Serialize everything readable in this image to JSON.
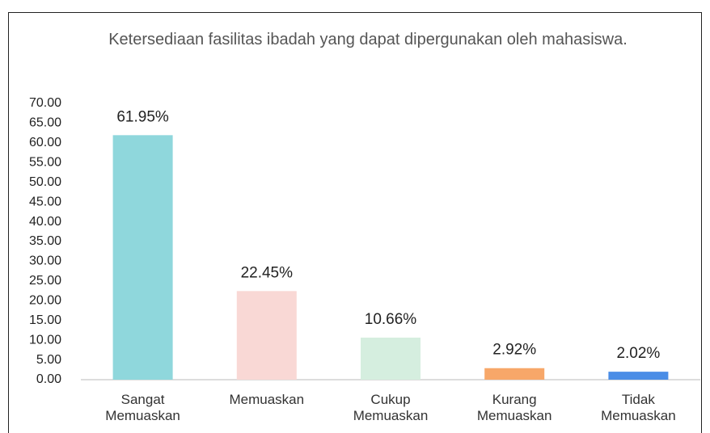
{
  "chart_data": {
    "type": "bar",
    "title": "Ketersediaan fasilitas ibadah yang dapat dipergunakan oleh mahasiswa.",
    "categories": [
      "Sangat Memuaskan",
      "Memuaskan",
      "Cukup Memuaskan",
      "Kurang Memuaskan",
      "Tidak Memuaskan"
    ],
    "values": [
      61.95,
      22.45,
      10.66,
      2.92,
      2.02
    ],
    "value_labels": [
      "61.95%",
      "22.45%",
      "10.66%",
      "2.92%",
      "2.02%"
    ],
    "colors": [
      "#8fd7dc",
      "#f9d8d5",
      "#d5eedf",
      "#f7a769",
      "#4a8de6"
    ],
    "ylim": [
      0,
      70
    ],
    "yticks": [
      {
        "value": 0,
        "label": "0.00"
      },
      {
        "value": 5,
        "label": "5.00"
      },
      {
        "value": 10,
        "label": "10.00"
      },
      {
        "value": 15,
        "label": "15.00"
      },
      {
        "value": 20,
        "label": "20.00"
      },
      {
        "value": 25,
        "label": "25.00"
      },
      {
        "value": 30,
        "label": "30.00"
      },
      {
        "value": 35,
        "label": "35.00"
      },
      {
        "value": 40,
        "label": "40.00"
      },
      {
        "value": 45,
        "label": "45.00"
      },
      {
        "value": 50,
        "label": "50.00"
      },
      {
        "value": 55,
        "label": "55.00"
      },
      {
        "value": 60,
        "label": "60.00"
      },
      {
        "value": 65,
        "label": "65.00"
      },
      {
        "value": 70,
        "label": "70.00"
      }
    ],
    "grid": false
  }
}
